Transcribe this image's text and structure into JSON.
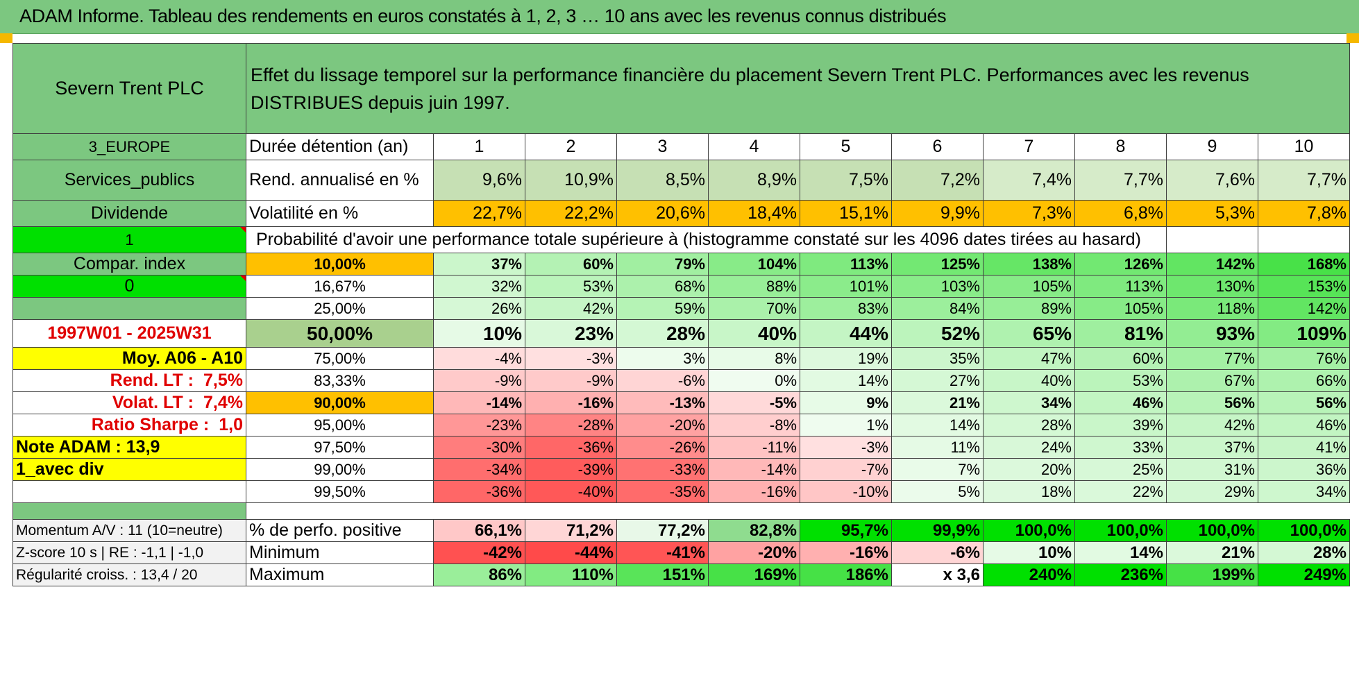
{
  "title": "ADAM Informe. Tableau des rendements en euros constatés à 1, 2, 3 … 10 ans avec les revenus connus distribués",
  "header": {
    "name": "Severn Trent PLC",
    "description": "Effet du lissage temporel sur la performance financière du placement Severn Trent PLC. Performances avec les revenus DISTRIBUES depuis juin 1997."
  },
  "left": {
    "region": "3_EUROPE",
    "sector": "Services_publics",
    "type": "Dividende",
    "flag1": "1",
    "compar": "Compar. index",
    "flag0": "0",
    "blank": "",
    "period": "1997W01 - 2025W31",
    "moy": "Moy. A06 - A10",
    "rend_lt_label": "Rend. LT :",
    "rend_lt_value": "7,5%",
    "volat_lt_label": "Volat. LT :",
    "volat_lt_value": "7,4%",
    "sharpe_label": "Ratio Sharpe :",
    "sharpe_value": "1,0",
    "note": "Note ADAM : 13,9",
    "avec_div": "1_avec div"
  },
  "durations": {
    "label": "Durée détention (an)",
    "values": [
      "1",
      "2",
      "3",
      "4",
      "5",
      "6",
      "7",
      "8",
      "9",
      "10"
    ]
  },
  "rend": {
    "label": "Rend. annualisé en %",
    "values": [
      "9,6%",
      "10,9%",
      "8,5%",
      "8,9%",
      "7,5%",
      "7,2%",
      "7,4%",
      "7,7%",
      "7,6%",
      "7,7%"
    ]
  },
  "vol": {
    "label": "Volatilité en %",
    "values": [
      "22,7%",
      "22,2%",
      "20,6%",
      "18,4%",
      "15,1%",
      "9,9%",
      "7,3%",
      "6,8%",
      "5,3%",
      "7,8%"
    ]
  },
  "prob_title": "Probabilité d'avoir une performance totale supérieure à (histogramme constaté sur les 4096 dates tirées au hasard)",
  "quantiles": [
    {
      "p": "10,00%",
      "v": [
        "37%",
        "60%",
        "79%",
        "104%",
        "113%",
        "125%",
        "138%",
        "126%",
        "142%",
        "168%"
      ]
    },
    {
      "p": "16,67%",
      "v": [
        "32%",
        "53%",
        "68%",
        "88%",
        "101%",
        "103%",
        "105%",
        "113%",
        "130%",
        "153%"
      ]
    },
    {
      "p": "25,00%",
      "v": [
        "26%",
        "42%",
        "59%",
        "70%",
        "83%",
        "84%",
        "89%",
        "105%",
        "118%",
        "142%"
      ]
    },
    {
      "p": "50,00%",
      "v": [
        "10%",
        "23%",
        "28%",
        "40%",
        "44%",
        "52%",
        "65%",
        "81%",
        "93%",
        "109%"
      ]
    },
    {
      "p": "75,00%",
      "v": [
        "-4%",
        "-3%",
        "3%",
        "8%",
        "19%",
        "35%",
        "47%",
        "60%",
        "77%",
        "76%"
      ]
    },
    {
      "p": "83,33%",
      "v": [
        "-9%",
        "-9%",
        "-6%",
        "0%",
        "14%",
        "27%",
        "40%",
        "53%",
        "67%",
        "66%"
      ]
    },
    {
      "p": "90,00%",
      "v": [
        "-14%",
        "-16%",
        "-13%",
        "-5%",
        "9%",
        "21%",
        "34%",
        "46%",
        "56%",
        "56%"
      ]
    },
    {
      "p": "95,00%",
      "v": [
        "-23%",
        "-28%",
        "-20%",
        "-8%",
        "1%",
        "14%",
        "28%",
        "39%",
        "42%",
        "46%"
      ]
    },
    {
      "p": "97,50%",
      "v": [
        "-30%",
        "-36%",
        "-26%",
        "-11%",
        "-3%",
        "11%",
        "24%",
        "33%",
        "37%",
        "41%"
      ]
    },
    {
      "p": "99,00%",
      "v": [
        "-34%",
        "-39%",
        "-33%",
        "-14%",
        "-7%",
        "7%",
        "20%",
        "25%",
        "31%",
        "36%"
      ]
    },
    {
      "p": "99,50%",
      "v": [
        "-36%",
        "-40%",
        "-35%",
        "-16%",
        "-10%",
        "5%",
        "18%",
        "22%",
        "29%",
        "34%"
      ]
    }
  ],
  "stats": [
    {
      "left": "Momentum A/V : 11 (10=neutre)",
      "label": "% de perfo. positive",
      "v": [
        "66,1%",
        "71,2%",
        "77,2%",
        "82,8%",
        "95,7%",
        "99,9%",
        "100,0%",
        "100,0%",
        "100,0%",
        "100,0%"
      ]
    },
    {
      "left": "Z-score 10 s | RE : -1,1 | -1,0",
      "label": "Minimum",
      "v": [
        "-42%",
        "-44%",
        "-41%",
        "-20%",
        "-16%",
        "-6%",
        "10%",
        "14%",
        "21%",
        "28%"
      ]
    },
    {
      "left": "Régularité croiss. : 13,4 / 20",
      "label": "Maximum",
      "v": [
        "86%",
        "110%",
        "151%",
        "169%",
        "186%",
        "x 3,6",
        "240%",
        "236%",
        "199%",
        "249%"
      ]
    }
  ],
  "colors": {
    "header_green": "#7cc780",
    "bright_green": "#00e000",
    "yellow": "#ffff00",
    "orange": "#ffc000",
    "red_text": "#e00000"
  }
}
